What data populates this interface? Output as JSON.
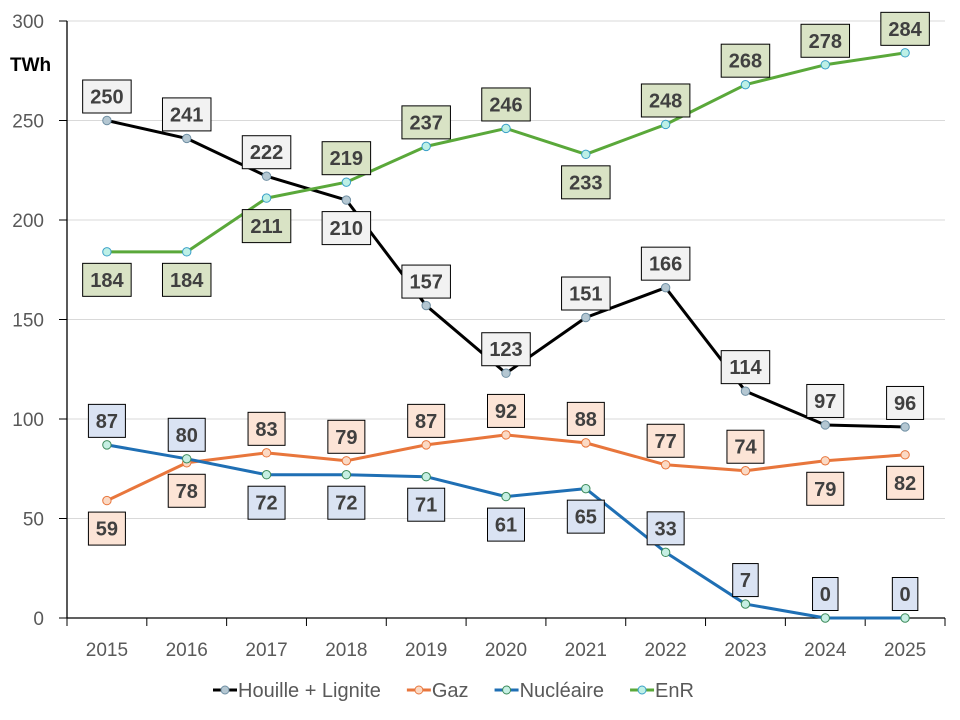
{
  "chart_data": {
    "type": "line",
    "title": "",
    "xlabel": "",
    "ylabel": "TWh",
    "ylim": [
      0,
      300
    ],
    "yticks": [
      0,
      50,
      100,
      150,
      200,
      250,
      300
    ],
    "grid": true,
    "legend_position": "bottom",
    "categories": [
      "2015",
      "2016",
      "2017",
      "2018",
      "2019",
      "2020",
      "2021",
      "2022",
      "2023",
      "2024",
      "2025"
    ],
    "series": [
      {
        "name": "Houille + Lignite",
        "color": "#000000",
        "marker_fill": "#b4c7d2",
        "marker_stroke": "#6f8fa3",
        "label_fill": "#f2f2f2",
        "values": [
          250,
          241,
          222,
          210,
          157,
          123,
          151,
          166,
          114,
          97,
          96
        ],
        "label_pos": [
          "above",
          "above",
          "above",
          "below",
          "above",
          "above",
          "above",
          "above",
          "above",
          "above",
          "above"
        ]
      },
      {
        "name": "Gaz",
        "color": "#e8763c",
        "marker_fill": "#fbd9c4",
        "marker_stroke": "#e8763c",
        "label_fill": "#fce4d6",
        "values": [
          59,
          78,
          83,
          79,
          87,
          92,
          88,
          77,
          74,
          79,
          82
        ],
        "label_pos": [
          "below",
          "below",
          "above",
          "above",
          "above",
          "above",
          "above",
          "above",
          "above",
          "below",
          "below"
        ]
      },
      {
        "name": "Nucléaire",
        "color": "#1f6fb4",
        "marker_fill": "#c6efe3",
        "marker_stroke": "#3c8a5a",
        "label_fill": "#dae3f3",
        "values": [
          87,
          80,
          72,
          72,
          71,
          61,
          65,
          33,
          7,
          0,
          0
        ],
        "label_pos": [
          "above",
          "above",
          "below",
          "below",
          "below",
          "below",
          "below",
          "above",
          "above",
          "above",
          "above"
        ]
      },
      {
        "name": "EnR",
        "color": "#5aa83a",
        "marker_fill": "#bdf0e6",
        "marker_stroke": "#3aa0c8",
        "label_fill": "#d9e3c5",
        "values": [
          184,
          184,
          211,
          219,
          237,
          246,
          233,
          248,
          268,
          278,
          284
        ],
        "label_pos": [
          "below",
          "below",
          "below",
          "above",
          "above",
          "above",
          "below",
          "above",
          "above",
          "above",
          "above"
        ]
      }
    ]
  }
}
